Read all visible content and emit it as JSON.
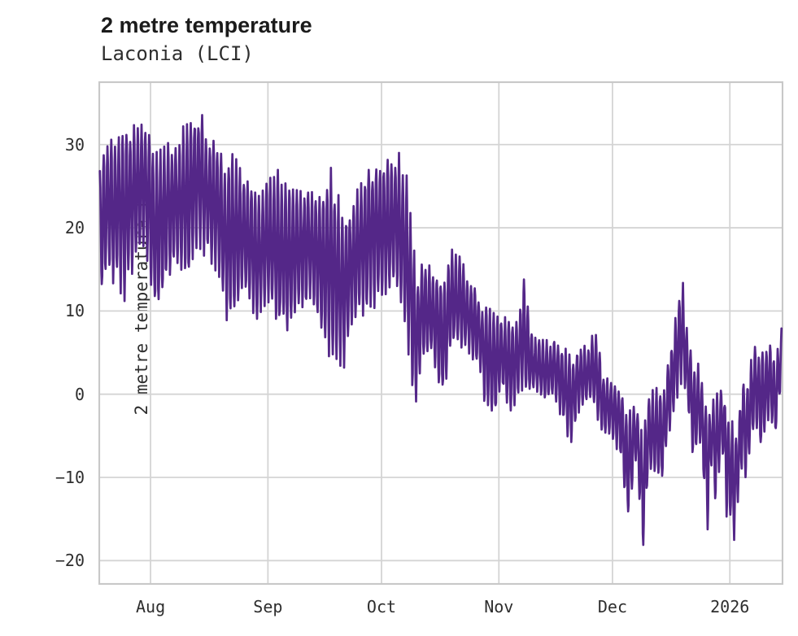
{
  "header": {
    "title": "2 metre temperature",
    "subtitle": "Laconia (LCI)"
  },
  "chart_data": {
    "type": "line",
    "title": "2 metre temperature",
    "subtitle": "Laconia (LCI)",
    "xlabel": "",
    "ylabel": "2 metre temperature [C]",
    "series_name": "2 metre temperature",
    "line_color": "#542788",
    "background": "#ffffff",
    "grid": true,
    "grid_color": "#d4d4d4",
    "border_color": "#c8c8c8",
    "legend": "none",
    "x_axis": {
      "unit_days_from_start": true,
      "xlim": [
        0.21,
        181.1
      ],
      "ticks": [
        {
          "d": 13.97,
          "label": "Aug"
        },
        {
          "d": 44.97,
          "label": "Sep"
        },
        {
          "d": 74.97,
          "label": "Oct"
        },
        {
          "d": 105.97,
          "label": "Nov"
        },
        {
          "d": 135.97,
          "label": "Dec"
        },
        {
          "d": 166.97,
          "label": "2026"
        }
      ]
    },
    "y_axis": {
      "ylim": [
        -22.9,
        37.6
      ],
      "ticks": [
        {
          "v": 30,
          "label": "30"
        },
        {
          "v": 20,
          "label": "20"
        },
        {
          "v": 10,
          "label": "10"
        },
        {
          "v": 0,
          "label": "0"
        },
        {
          "v": -10,
          "label": "−10"
        },
        {
          "v": -20,
          "label": "−20"
        }
      ]
    },
    "sampling": {
      "d_start": 0.6,
      "d_end": 180.6,
      "step": 0.125,
      "noise_seed": 7
    },
    "envelope_daily": [
      {
        "d": 0.6,
        "lo": 11.5,
        "hi": 27.5
      },
      {
        "d": 2.1,
        "lo": 14,
        "hi": 30
      },
      {
        "d": 5.4,
        "lo": 12.9,
        "hi": 32.3
      },
      {
        "d": 7.1,
        "lo": 11,
        "hi": 32.7
      },
      {
        "d": 9.7,
        "lo": 15.5,
        "hi": 33
      },
      {
        "d": 12.9,
        "lo": 16.6,
        "hi": 33.5
      },
      {
        "d": 15.3,
        "lo": 9.7,
        "hi": 29
      },
      {
        "d": 18,
        "lo": 13.5,
        "hi": 30
      },
      {
        "d": 21.1,
        "lo": 15,
        "hi": 31
      },
      {
        "d": 24.1,
        "lo": 14.2,
        "hi": 33.5
      },
      {
        "d": 26.9,
        "lo": 17,
        "hi": 35
      },
      {
        "d": 29.7,
        "lo": 16,
        "hi": 31
      },
      {
        "d": 32.2,
        "lo": 14,
        "hi": 29.5
      },
      {
        "d": 33.9,
        "lo": 8.8,
        "hi": 28
      },
      {
        "d": 35.9,
        "lo": 9.7,
        "hi": 29
      },
      {
        "d": 38.7,
        "lo": 12,
        "hi": 26
      },
      {
        "d": 41.9,
        "lo": 9,
        "hi": 24.5
      },
      {
        "d": 45.1,
        "lo": 10,
        "hi": 26.5
      },
      {
        "d": 47.5,
        "lo": 8,
        "hi": 27
      },
      {
        "d": 49.9,
        "lo": 7.5,
        "hi": 26
      },
      {
        "d": 52.6,
        "lo": 10,
        "hi": 25
      },
      {
        "d": 55.9,
        "lo": 11,
        "hi": 25.5
      },
      {
        "d": 59.1,
        "lo": 8,
        "hi": 24
      },
      {
        "d": 61.6,
        "lo": 3.7,
        "hi": 27.2
      },
      {
        "d": 65.1,
        "lo": 3.2,
        "hi": 22
      },
      {
        "d": 67,
        "lo": 7,
        "hi": 24
      },
      {
        "d": 70,
        "lo": 9,
        "hi": 27
      },
      {
        "d": 73.1,
        "lo": 10,
        "hi": 28.5
      },
      {
        "d": 76.1,
        "lo": 12,
        "hi": 28
      },
      {
        "d": 79.1,
        "lo": 13,
        "hi": 29
      },
      {
        "d": 81,
        "lo": 8,
        "hi": 29
      },
      {
        "d": 84.1,
        "lo": -2.2,
        "hi": 15
      },
      {
        "d": 85.5,
        "lo": 4,
        "hi": 16
      },
      {
        "d": 88,
        "lo": 5,
        "hi": 15.5
      },
      {
        "d": 91.5,
        "lo": -1,
        "hi": 14
      },
      {
        "d": 93,
        "lo": 5,
        "hi": 17.5
      },
      {
        "d": 95,
        "lo": 6,
        "hi": 17.1
      },
      {
        "d": 97.8,
        "lo": 5,
        "hi": 14.5
      },
      {
        "d": 101,
        "lo": 3,
        "hi": 11.5
      },
      {
        "d": 102.1,
        "lo": -0.8,
        "hi": 10.5
      },
      {
        "d": 105.3,
        "lo": -2.8,
        "hi": 10
      },
      {
        "d": 106.4,
        "lo": 1.5,
        "hi": 9.5
      },
      {
        "d": 108.9,
        "lo": -2.8,
        "hi": 9
      },
      {
        "d": 111,
        "lo": -0.8,
        "hi": 9
      },
      {
        "d": 112.6,
        "lo": 1,
        "hi": 14
      },
      {
        "d": 114.5,
        "lo": 0,
        "hi": 7.5
      },
      {
        "d": 118.8,
        "lo": -0.7,
        "hi": 6.5
      },
      {
        "d": 120.3,
        "lo": 0,
        "hi": 6.5
      },
      {
        "d": 125.1,
        "lo": -6.4,
        "hi": 5
      },
      {
        "d": 127.2,
        "lo": -2,
        "hi": 5.5
      },
      {
        "d": 130,
        "lo": -1,
        "hi": 6.5
      },
      {
        "d": 131.7,
        "lo": -2.5,
        "hi": 8
      },
      {
        "d": 133.5,
        "lo": -5.1,
        "hi": 2.5
      },
      {
        "d": 135.8,
        "lo": -5,
        "hi": 2
      },
      {
        "d": 138,
        "lo": -7.7,
        "hi": 1
      },
      {
        "d": 140.1,
        "lo": -15.9,
        "hi": -2
      },
      {
        "d": 142,
        "lo": -8,
        "hi": -1
      },
      {
        "d": 143.2,
        "lo": -13,
        "hi": -3
      },
      {
        "d": 144.1,
        "lo": -20.3,
        "hi": -4.5
      },
      {
        "d": 145.5,
        "lo": -9,
        "hi": -0.5
      },
      {
        "d": 147.6,
        "lo": -11,
        "hi": 1.4
      },
      {
        "d": 149.3,
        "lo": -10.5,
        "hi": 0
      },
      {
        "d": 151.5,
        "lo": -3,
        "hi": 6.5
      },
      {
        "d": 154.6,
        "lo": 2,
        "hi": 14
      },
      {
        "d": 156,
        "lo": -2,
        "hi": 6.5
      },
      {
        "d": 157.5,
        "lo": -9.1,
        "hi": 4.5
      },
      {
        "d": 159,
        "lo": -6,
        "hi": 4
      },
      {
        "d": 161.1,
        "lo": -16.4,
        "hi": -2
      },
      {
        "d": 162.2,
        "lo": -8,
        "hi": -1
      },
      {
        "d": 163.3,
        "lo": -13.5,
        "hi": 0
      },
      {
        "d": 164.8,
        "lo": -6,
        "hi": 0.5
      },
      {
        "d": 166.1,
        "lo": -14.7,
        "hi": -1
      },
      {
        "d": 168.1,
        "lo": -17.7,
        "hi": -4
      },
      {
        "d": 169.3,
        "lo": -12,
        "hi": -3
      },
      {
        "d": 170.4,
        "lo": -8,
        "hi": 3.7
      },
      {
        "d": 171.1,
        "lo": -10.1,
        "hi": 0
      },
      {
        "d": 173.4,
        "lo": -4,
        "hi": 6.5
      },
      {
        "d": 175.6,
        "lo": -7.1,
        "hi": 5.5
      },
      {
        "d": 177.3,
        "lo": -2.6,
        "hi": 6.8
      },
      {
        "d": 179,
        "lo": -5.2,
        "hi": 4
      },
      {
        "d": 180.6,
        "lo": 0.5,
        "hi": 7.9
      }
    ]
  }
}
